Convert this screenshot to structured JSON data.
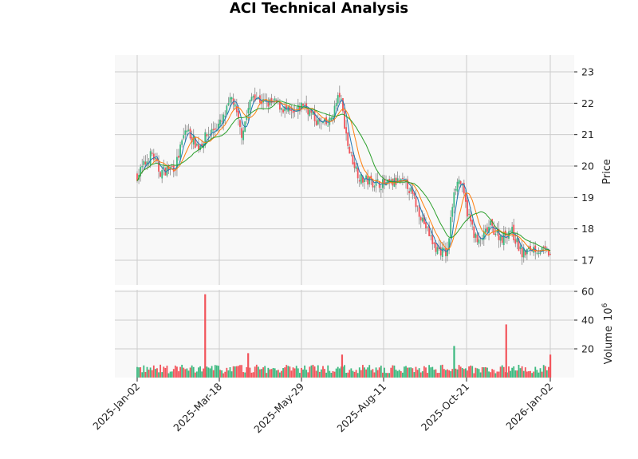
{
  "chart_data": {
    "type": "candlestick",
    "title": "ACI Technical Analysis",
    "panels": [
      {
        "name": "price",
        "ylabel": "Price",
        "yticks": [
          17,
          18,
          19,
          20,
          21,
          22,
          23
        ],
        "ylim": [
          16.2,
          23.5
        ],
        "grid": true,
        "series": [
          {
            "name": "close",
            "style": "candles",
            "up_color": "#3cb97f",
            "down_color": "#f2545b"
          },
          {
            "name": "ma_short",
            "color": "#1f77b4"
          },
          {
            "name": "ma_mid",
            "color": "#ff7f0e"
          },
          {
            "name": "ma_long",
            "color": "#2ca02c"
          }
        ],
        "approx_close_path": [
          [
            "2025-01-02",
            19.7
          ],
          [
            "2025-01-15",
            20.4
          ],
          [
            "2025-01-22",
            19.8
          ],
          [
            "2025-02-05",
            20.0
          ],
          [
            "2025-02-14",
            21.2
          ],
          [
            "2025-02-25",
            20.6
          ],
          [
            "2025-03-05",
            21.0
          ],
          [
            "2025-03-18",
            21.4
          ],
          [
            "2025-03-27",
            22.2
          ],
          [
            "2025-04-04",
            21.0
          ],
          [
            "2025-04-14",
            22.3
          ],
          [
            "2025-04-24",
            22.0
          ],
          [
            "2025-05-05",
            22.0
          ],
          [
            "2025-05-20",
            21.6
          ],
          [
            "2025-05-29",
            22.0
          ],
          [
            "2025-06-10",
            21.4
          ],
          [
            "2025-06-20",
            21.3
          ],
          [
            "2025-06-30",
            22.3
          ],
          [
            "2025-07-08",
            20.5
          ],
          [
            "2025-07-18",
            19.6
          ],
          [
            "2025-07-28",
            19.5
          ],
          [
            "2025-08-11",
            19.4
          ],
          [
            "2025-08-20",
            19.5
          ],
          [
            "2025-08-29",
            19.4
          ],
          [
            "2025-09-10",
            18.4
          ],
          [
            "2025-09-22",
            17.4
          ],
          [
            "2025-10-03",
            17.2
          ],
          [
            "2025-10-09",
            19.3
          ],
          [
            "2025-10-14",
            19.6
          ],
          [
            "2025-10-21",
            18.5
          ],
          [
            "2025-10-30",
            17.5
          ],
          [
            "2025-11-10",
            18.1
          ],
          [
            "2025-11-20",
            17.7
          ],
          [
            "2025-11-28",
            18.0
          ],
          [
            "2025-12-08",
            17.2
          ],
          [
            "2025-12-18",
            17.4
          ],
          [
            "2026-01-02",
            17.2
          ]
        ]
      },
      {
        "name": "volume",
        "ylabel": "Volume  10^6",
        "yticks": [
          20,
          40,
          60
        ],
        "ylim": [
          0,
          64
        ],
        "grid": true,
        "notable_bars": [
          {
            "date": "2025-03-03",
            "value": 58,
            "color": "#f2545b"
          },
          {
            "date": "2025-04-10",
            "value": 17,
            "color": "#f2545b"
          },
          {
            "date": "2025-07-02",
            "value": 16,
            "color": "#f2545b"
          },
          {
            "date": "2025-10-09",
            "value": 22,
            "color": "#3cb97f"
          },
          {
            "date": "2025-11-24",
            "value": 37,
            "color": "#f2545b"
          },
          {
            "date": "2026-01-02",
            "value": 16,
            "color": "#f2545b"
          }
        ],
        "typical_range": [
          3,
          10
        ]
      }
    ],
    "xticks": [
      "2025-Jan-02",
      "2025-Mar-18",
      "2025-May-29",
      "2025-Aug-11",
      "2025-Oct-21",
      "2026-Jan-02"
    ],
    "xlabel": "",
    "legend": null
  },
  "labels": {
    "title": "ACI Technical Analysis",
    "price_ylabel": "Price",
    "volume_ylabel": "Volume",
    "volume_exp": "10",
    "volume_exp_sup": "6"
  }
}
